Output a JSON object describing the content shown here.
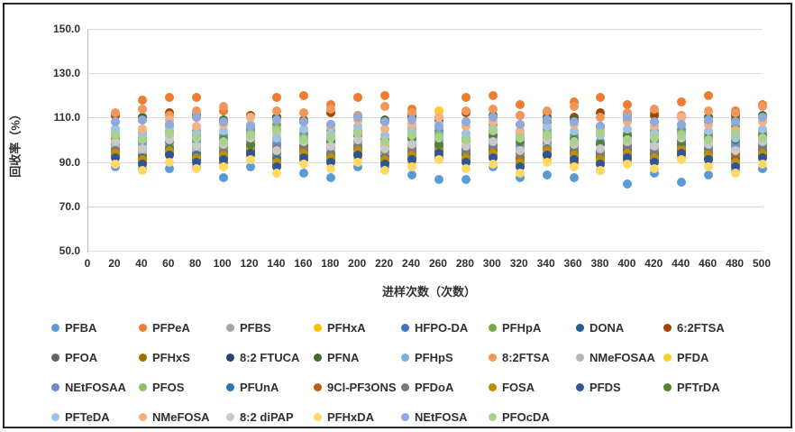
{
  "colors": {
    "background": "#ffffff",
    "frame_border": "#262626",
    "gridline": "#d9d9d9",
    "axis_line": "#bfbfbf",
    "text": "#303030"
  },
  "chart_data": {
    "type": "scatter",
    "title": "",
    "xlabel": "进样次数（次数）",
    "ylabel": "回收率（%）",
    "xlim": [
      0,
      500
    ],
    "ylim": [
      50,
      150
    ],
    "grid": true,
    "legend_position": "bottom",
    "x_ticks": [
      {
        "value": 0,
        "label": "0"
      },
      {
        "value": 20,
        "label": "20"
      },
      {
        "value": 40,
        "label": "40"
      },
      {
        "value": 60,
        "label": "60"
      },
      {
        "value": 80,
        "label": "80"
      },
      {
        "value": 100,
        "label": "100"
      },
      {
        "value": 120,
        "label": "120"
      },
      {
        "value": 140,
        "label": "140"
      },
      {
        "value": 160,
        "label": "160"
      },
      {
        "value": 180,
        "label": "180"
      },
      {
        "value": 200,
        "label": "200"
      },
      {
        "value": 220,
        "label": "220"
      },
      {
        "value": 240,
        "label": "240"
      },
      {
        "value": 260,
        "label": "260"
      },
      {
        "value": 280,
        "label": "280"
      },
      {
        "value": 300,
        "label": "300"
      },
      {
        "value": 320,
        "label": "320"
      },
      {
        "value": 340,
        "label": "340"
      },
      {
        "value": 360,
        "label": "360"
      },
      {
        "value": 380,
        "label": "380"
      },
      {
        "value": 400,
        "label": "400"
      },
      {
        "value": 420,
        "label": "420"
      },
      {
        "value": 440,
        "label": "440"
      },
      {
        "value": 460,
        "label": "460"
      },
      {
        "value": 480,
        "label": "480"
      },
      {
        "value": 500,
        "label": "500"
      }
    ],
    "y_ticks": [
      {
        "value": 50,
        "label": "50.0"
      },
      {
        "value": 70,
        "label": "70.0"
      },
      {
        "value": 90,
        "label": "90.0"
      },
      {
        "value": 110,
        "label": "110.0"
      },
      {
        "value": 130,
        "label": "130.0"
      },
      {
        "value": 150,
        "label": "150.0"
      }
    ],
    "x": [
      20,
      40,
      60,
      80,
      100,
      120,
      140,
      160,
      180,
      200,
      220,
      240,
      260,
      280,
      300,
      320,
      340,
      360,
      380,
      400,
      420,
      440,
      460,
      480,
      500
    ],
    "series": [
      {
        "name": "PFBA",
        "color": "#5B9BD5",
        "values": [
          88,
          87,
          87,
          88,
          83,
          88,
          89,
          85,
          83,
          88,
          88,
          84,
          82,
          82,
          88,
          83,
          84,
          83,
          86,
          80,
          85,
          81,
          84,
          86,
          87
        ]
      },
      {
        "name": "PFPeA",
        "color": "#ED7D31",
        "values": [
          111,
          118,
          119,
          119,
          113,
          111,
          119,
          120,
          116,
          119,
          120,
          114,
          113,
          119,
          120,
          116,
          112,
          117,
          119,
          116,
          112,
          117,
          120,
          113,
          116
        ]
      },
      {
        "name": "PFBS",
        "color": "#A5A5A5",
        "values": [
          98,
          96,
          99,
          97,
          95,
          98,
          100,
          96,
          97,
          99,
          95,
          98,
          97,
          96,
          100,
          97,
          98,
          95,
          99,
          96,
          97,
          98,
          96,
          99,
          97
        ]
      },
      {
        "name": "PFHxA",
        "color": "#FFC000",
        "values": [
          94,
          91,
          95,
          92,
          90,
          93,
          96,
          91,
          94,
          92,
          95,
          90,
          93,
          96,
          92,
          94,
          91,
          95,
          93,
          90,
          94,
          92,
          96,
          91,
          93
        ]
      },
      {
        "name": "HFPO-DA",
        "color": "#4472C4",
        "values": [
          98,
          95,
          99,
          96,
          97,
          100,
          94,
          98,
          96,
          99,
          95,
          97,
          100,
          96,
          98,
          94,
          99,
          97,
          95,
          98,
          96,
          100,
          97,
          94,
          98
        ]
      },
      {
        "name": "PFHpA",
        "color": "#70AD47",
        "values": [
          105,
          103,
          106,
          104,
          102,
          105,
          107,
          103,
          104,
          106,
          102,
          105,
          104,
          103,
          107,
          104,
          105,
          102,
          106,
          103,
          104,
          105,
          103,
          106,
          104
        ]
      },
      {
        "name": "DONA",
        "color": "#255E91",
        "values": [
          96,
          93,
          97,
          94,
          95,
          98,
          92,
          96,
          94,
          97,
          93,
          95,
          98,
          94,
          96,
          92,
          97,
          95,
          93,
          96,
          94,
          98,
          95,
          92,
          96
        ]
      },
      {
        "name": "6:2FTSA",
        "color": "#9E480E",
        "values": [
          111,
          109,
          112,
          110,
          108,
          111,
          110,
          109,
          112,
          110,
          108,
          111,
          109,
          112,
          110,
          111,
          108,
          110,
          112,
          109,
          111,
          110,
          108,
          111,
          110
        ]
      },
      {
        "name": "PFOA",
        "color": "#636363",
        "values": [
          97,
          98,
          96,
          99,
          97,
          95,
          98,
          97,
          96,
          99,
          97,
          98,
          95,
          97,
          99,
          96,
          98,
          97,
          95,
          99,
          97,
          96,
          98,
          97,
          99
        ]
      },
      {
        "name": "PFHxS",
        "color": "#997300",
        "values": [
          95,
          93,
          96,
          94,
          97,
          95,
          92,
          96,
          94,
          97,
          93,
          95,
          96,
          94,
          97,
          92,
          96,
          95,
          93,
          97,
          94,
          96,
          95,
          93,
          96
        ]
      },
      {
        "name": "8:2 FTUCA",
        "color": "#264478",
        "values": [
          93,
          90,
          94,
          91,
          92,
          95,
          89,
          93,
          91,
          94,
          90,
          92,
          95,
          91,
          93,
          89,
          94,
          92,
          90,
          93,
          91,
          95,
          92,
          89,
          93
        ]
      },
      {
        "name": "PFNA",
        "color": "#43682B",
        "values": [
          108,
          110,
          107,
          111,
          109,
          106,
          110,
          108,
          107,
          111,
          109,
          110,
          106,
          108,
          111,
          107,
          110,
          109,
          106,
          111,
          108,
          107,
          110,
          109,
          111
        ]
      },
      {
        "name": "PFHpS",
        "color": "#7CAFDD",
        "values": [
          101,
          98,
          102,
          99,
          100,
          103,
          97,
          101,
          99,
          102,
          98,
          100,
          103,
          99,
          101,
          97,
          102,
          100,
          98,
          101,
          99,
          103,
          100,
          97,
          101
        ]
      },
      {
        "name": "8:2FTSA",
        "color": "#F1975A",
        "values": [
          112,
          114,
          111,
          113,
          115,
          110,
          113,
          112,
          114,
          111,
          115,
          112,
          110,
          113,
          114,
          111,
          113,
          115,
          110,
          112,
          114,
          111,
          113,
          112,
          115
        ]
      },
      {
        "name": "NMeFOSAA",
        "color": "#B7B7B7",
        "values": [
          97,
          95,
          98,
          96,
          94,
          97,
          99,
          95,
          96,
          98,
          94,
          97,
          96,
          95,
          99,
          96,
          97,
          94,
          98,
          95,
          96,
          97,
          95,
          98,
          96
        ]
      },
      {
        "name": "PFDA",
        "color": "#FFCD33",
        "values": [
          101,
          99,
          102,
          100,
          98,
          101,
          103,
          99,
          100,
          102,
          98,
          101,
          113,
          99,
          103,
          100,
          101,
          98,
          102,
          99,
          100,
          101,
          99,
          102,
          100
        ]
      },
      {
        "name": "NEtFOSAA",
        "color": "#698ED0",
        "values": [
          102,
          99,
          103,
          100,
          101,
          104,
          98,
          102,
          100,
          103,
          99,
          101,
          104,
          100,
          102,
          98,
          103,
          101,
          99,
          102,
          100,
          104,
          101,
          98,
          102
        ]
      },
      {
        "name": "PFOS",
        "color": "#8CC168",
        "values": [
          103,
          101,
          104,
          102,
          100,
          103,
          105,
          101,
          102,
          104,
          100,
          103,
          102,
          101,
          105,
          102,
          103,
          100,
          104,
          101,
          102,
          103,
          101,
          104,
          102
        ]
      },
      {
        "name": "PFUnA",
        "color": "#2E75B6",
        "values": [
          95,
          92,
          96,
          93,
          94,
          97,
          91,
          95,
          93,
          96,
          92,
          94,
          97,
          93,
          95,
          91,
          96,
          94,
          92,
          95,
          93,
          97,
          94,
          91,
          95
        ]
      },
      {
        "name": "9Cl-PF3ONS",
        "color": "#C55A11",
        "values": [
          93,
          91,
          94,
          92,
          90,
          93,
          95,
          91,
          92,
          94,
          90,
          93,
          92,
          91,
          95,
          92,
          93,
          90,
          94,
          91,
          92,
          93,
          91,
          94,
          92
        ]
      },
      {
        "name": "PFDoA",
        "color": "#7B7B7B",
        "values": [
          95,
          96,
          94,
          97,
          95,
          93,
          96,
          95,
          94,
          97,
          95,
          96,
          93,
          95,
          97,
          94,
          96,
          95,
          93,
          97,
          95,
          94,
          96,
          95,
          97
        ]
      },
      {
        "name": "FOSA",
        "color": "#BF8F00",
        "values": [
          94,
          91,
          95,
          92,
          93,
          96,
          90,
          94,
          92,
          95,
          91,
          93,
          96,
          92,
          94,
          90,
          95,
          93,
          91,
          94,
          92,
          96,
          93,
          90,
          94
        ]
      },
      {
        "name": "PFDS",
        "color": "#2F5597",
        "values": [
          92,
          89,
          93,
          90,
          91,
          94,
          88,
          92,
          90,
          93,
          89,
          91,
          94,
          90,
          92,
          88,
          93,
          91,
          89,
          92,
          90,
          94,
          91,
          88,
          92
        ]
      },
      {
        "name": "PFTrDA",
        "color": "#538135",
        "values": [
          100,
          101,
          99,
          102,
          100,
          98,
          101,
          100,
          99,
          102,
          100,
          101,
          98,
          100,
          102,
          99,
          101,
          100,
          98,
          102,
          100,
          99,
          101,
          100,
          102
        ]
      },
      {
        "name": "PFTeDA",
        "color": "#9DC3E6",
        "values": [
          105,
          102,
          106,
          103,
          104,
          107,
          101,
          105,
          103,
          106,
          102,
          104,
          107,
          103,
          105,
          101,
          106,
          104,
          102,
          105,
          103,
          107,
          104,
          101,
          105
        ]
      },
      {
        "name": "NMeFOSA",
        "color": "#F4B183",
        "values": [
          108,
          105,
          109,
          106,
          107,
          110,
          104,
          108,
          106,
          109,
          105,
          107,
          110,
          106,
          108,
          104,
          109,
          107,
          105,
          108,
          106,
          110,
          107,
          104,
          108
        ]
      },
      {
        "name": "8:2 diPAP",
        "color": "#C9C9C9",
        "values": [
          99,
          96,
          100,
          97,
          98,
          101,
          95,
          99,
          97,
          100,
          96,
          98,
          101,
          97,
          99,
          95,
          100,
          98,
          96,
          99,
          97,
          101,
          98,
          95,
          99
        ]
      },
      {
        "name": "PFHxDA",
        "color": "#FFD966",
        "values": [
          89,
          86,
          90,
          87,
          88,
          91,
          85,
          89,
          87,
          90,
          86,
          88,
          91,
          87,
          89,
          85,
          90,
          88,
          86,
          89,
          87,
          91,
          88,
          85,
          89
        ]
      },
      {
        "name": "NEtFOSA",
        "color": "#8FAADC",
        "values": [
          108,
          109,
          107,
          110,
          108,
          106,
          109,
          108,
          107,
          110,
          108,
          109,
          106,
          108,
          110,
          107,
          109,
          108,
          106,
          110,
          108,
          107,
          109,
          108,
          110
        ]
      },
      {
        "name": "PFOcDA",
        "color": "#A9D18E",
        "values": [
          102,
          100,
          103,
          101,
          99,
          102,
          104,
          100,
          101,
          103,
          99,
          102,
          101,
          100,
          104,
          101,
          102,
          99,
          103,
          100,
          101,
          102,
          100,
          103,
          101
        ]
      }
    ]
  }
}
